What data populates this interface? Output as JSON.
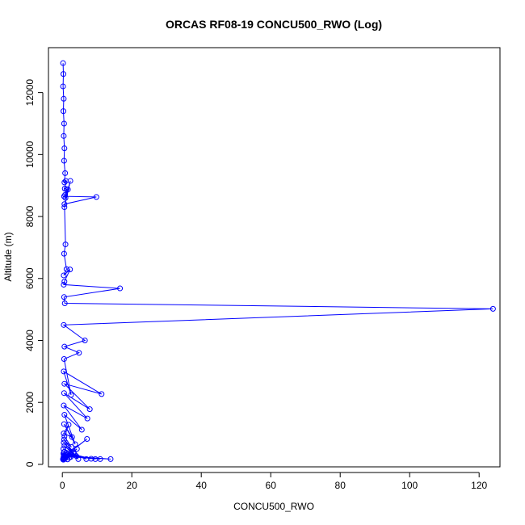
{
  "chart_data": {
    "type": "line",
    "title": "ORCAS RF08-19 CONCU500_RWO (Log)",
    "xlabel": "CONCU500_RWO",
    "ylabel": "Altitude (m)",
    "xlim": [
      -4,
      126
    ],
    "ylim": [
      -80,
      13450
    ],
    "xticks": [
      0,
      20,
      40,
      60,
      80,
      100,
      120
    ],
    "yticks": [
      0,
      2000,
      4000,
      6000,
      8000,
      10000,
      12000
    ],
    "grid": false,
    "legend": "none",
    "marker": "open-circle",
    "color": "#0000ff",
    "series": [
      {
        "x": [
          0.2,
          0.3,
          0.2,
          0.4,
          0.3,
          0.5,
          0.4,
          0.6,
          0.5,
          0.8,
          0.6,
          1.0,
          0.7,
          1.2,
          0.8,
          0.9,
          2.3,
          0.6,
          1.6,
          0.5,
          9.8,
          0.6,
          0.9,
          0.5,
          1.2,
          0.4,
          2.2,
          0.6,
          0.4,
          16.6,
          0.5,
          0.7,
          124,
          0.4,
          6.5,
          0.6,
          4.8,
          0.5,
          2.5,
          0.4,
          11.3,
          0.6,
          7.9,
          0.5,
          7.2,
          0.4,
          5.6,
          0.6,
          3.7,
          0.5,
          2.8,
          0.4,
          1.8,
          0.6,
          2.6,
          0.5,
          3.2,
          0.4,
          4.0,
          0.6,
          4.6,
          0.3,
          6.9,
          0.5,
          8.3,
          0.3,
          9.5,
          0.4,
          10.9,
          0.5,
          13.9,
          0.4,
          7.1,
          0.3,
          4.2,
          0.5,
          3.5,
          0.3,
          2.4,
          0.4,
          1.5,
          0.3,
          0.9,
          0.2,
          0.8,
          0.3,
          2.0,
          0.2
        ],
        "y": [
          12950,
          12600,
          12200,
          11800,
          11400,
          11000,
          10600,
          10200,
          9800,
          9400,
          9100,
          9150,
          8900,
          8880,
          8700,
          8600,
          9150,
          8300,
          8870,
          8650,
          8630,
          8400,
          7100,
          6800,
          6300,
          6100,
          6290,
          5900,
          5800,
          5680,
          5400,
          5200,
          5020,
          4500,
          4000,
          3800,
          3600,
          3400,
          2240,
          3000,
          2270,
          2600,
          1780,
          2300,
          1480,
          1900,
          1120,
          1600,
          650,
          1300,
          880,
          1000,
          1280,
          900,
          560,
          800,
          380,
          700,
          270,
          600,
          170,
          500,
          170,
          400,
          180,
          350,
          170,
          300,
          170,
          280,
          170,
          250,
          820,
          220,
          500,
          200,
          330,
          180,
          240,
          160,
          160,
          180,
          270,
          170,
          190,
          150,
          220,
          160
        ]
      }
    ]
  }
}
